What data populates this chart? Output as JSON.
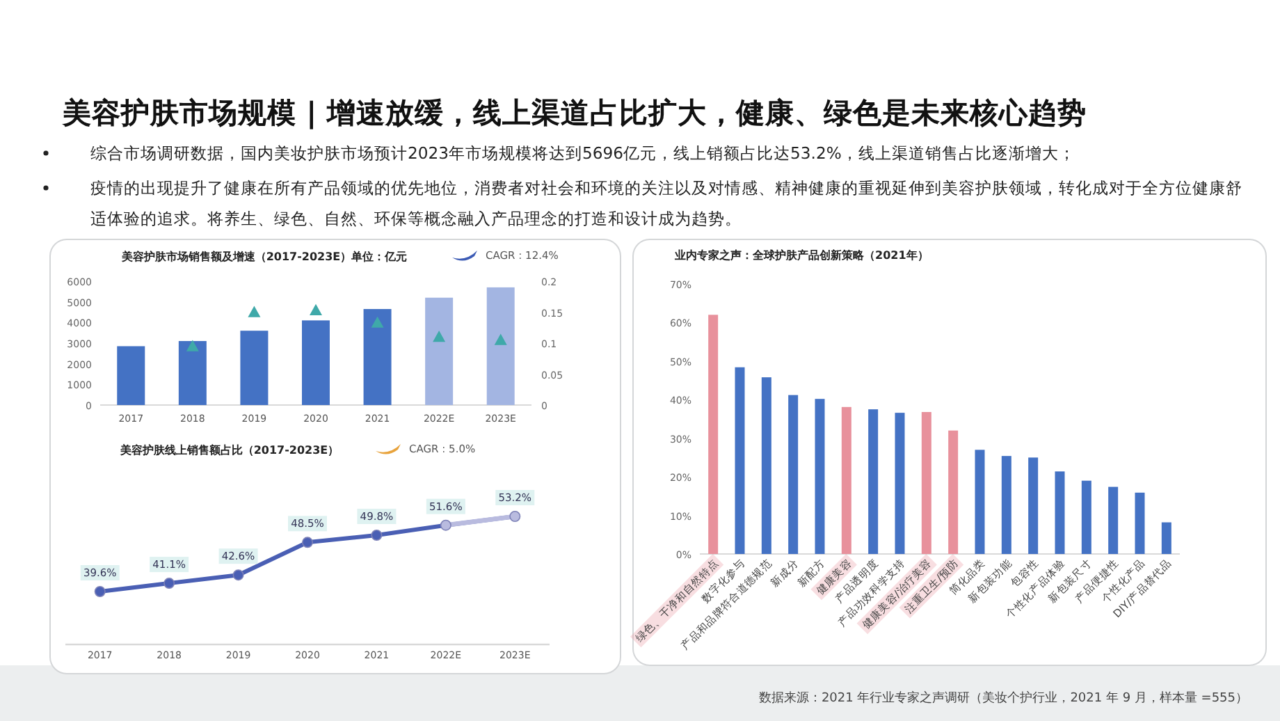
{
  "chart_data": [
    {
      "type": "other",
      "title": "美容护肤市场规模 | 增速放缓，线上渠道占比扩大，健康、绿色是未来核心趋势",
      "annotations": [
        "综合市场调研数据，国内美妆护肤市场预计2023年市场规模将达到5696亿元，线上销额占比达53.2%，线上渠道销售占比逐渐增大；",
        "疫情的出现提升了健康在所有产品领域的优先地位，消费者对社会和环境的关注以及对情感、精神健康的重视延伸到美容护肤领域，转化成对于全方位健康舒适体验的追求。将养生、绿色、自然、环保等概念融入产品理念的打造和设计成为趋势。",
        "数据来源：2021 年行业专家之声调研（美妆个护行业，2021 年 9 月，样本量 =555）"
      ]
    },
    {
      "type": "bar",
      "title": "美容护肤市场销售额及增速（2017-2023E）单位：亿元",
      "categories": [
        "2017",
        "2018",
        "2019",
        "2020",
        "2021",
        "2022E",
        "2023E"
      ],
      "series": [
        {
          "type": "bar",
          "values": [
            2850,
            3100,
            3600,
            4100,
            4650,
            5200,
            5700
          ],
          "colors": [
            "#4472c4",
            "#4472c4",
            "#4472c4",
            "#4472c4",
            "#4472c4",
            "#a3b5e2",
            "#a3b5e2"
          ]
        },
        {
          "type": "scatter",
          "axis": "y2",
          "marker": "triangle",
          "color": "#3fa9a9",
          "values": [
            null,
            0.095,
            0.15,
            0.153,
            0.133,
            0.11,
            0.105
          ]
        }
      ],
      "ylim": [
        0,
        6000
      ],
      "yticks": [
        0,
        1000,
        2000,
        3000,
        4000,
        5000,
        6000
      ],
      "y2lim": [
        0,
        0.2
      ],
      "y2ticks": [
        0,
        0.05,
        0.1,
        0.15,
        0.2
      ],
      "annotations": [
        "CAGR : 12.4%"
      ]
    },
    {
      "type": "line",
      "title": "美容护肤线上销售额占比（2017-2023E）",
      "categories": [
        "2017",
        "2018",
        "2019",
        "2020",
        "2021",
        "2022E",
        "2023E"
      ],
      "series": [
        {
          "values": [
            39.6,
            41.1,
            42.6,
            48.5,
            49.8,
            51.6,
            53.2
          ],
          "value_labels": [
            "39.6%",
            "41.1%",
            "42.6%",
            "48.5%",
            "49.8%",
            "51.6%",
            "53.2%"
          ],
          "colors": [
            "#4a5fb4",
            "#4a5fb4",
            "#4a5fb4",
            "#4a5fb4",
            "#4a5fb4",
            "#b9bbdf",
            "#b9bbdf"
          ]
        }
      ],
      "marker": "circle",
      "annotations": [
        "CAGR : 5.0%"
      ]
    },
    {
      "type": "bar",
      "title": "业内专家之声：全球护肤产品创新策略（2021年）",
      "categories": [
        "绿色、干净和自然特点",
        "数字化参与",
        "产品和品牌符合道德规范",
        "新成分",
        "新配方",
        "健康美容",
        "产品透明度",
        "产品功效科学支持",
        "健康美容/治疗美容",
        "注重卫生/预防",
        "简化品类",
        "新包装功能",
        "包容性",
        "个性化产品体验",
        "新包装尺寸",
        "产品便捷性",
        "个性化产品",
        "DIY/产品替代品"
      ],
      "values": [
        62,
        48.4,
        45.8,
        41.2,
        40.2,
        38.1,
        37.5,
        36.6,
        36.8,
        32,
        27,
        25.4,
        25,
        21.4,
        19,
        17.4,
        15.9,
        8.2
      ],
      "colors": [
        "#e8919c",
        "#4472c4",
        "#4472c4",
        "#4472c4",
        "#4472c4",
        "#e8919c",
        "#4472c4",
        "#4472c4",
        "#e8919c",
        "#e8919c",
        "#4472c4",
        "#4472c4",
        "#4472c4",
        "#4472c4",
        "#4472c4",
        "#4472c4",
        "#4472c4",
        "#4472c4"
      ],
      "ylim": [
        0,
        70
      ],
      "yticks": [
        {
          "value": 0,
          "label": "0%"
        },
        {
          "value": 10,
          "label": "10%"
        },
        {
          "value": 20,
          "label": "20%"
        },
        {
          "value": 30,
          "label": "30%"
        },
        {
          "value": 40,
          "label": "40%"
        },
        {
          "value": 50,
          "label": "50%"
        },
        {
          "value": 60,
          "label": "60%"
        },
        {
          "value": 70,
          "label": "70%"
        }
      ]
    }
  ]
}
